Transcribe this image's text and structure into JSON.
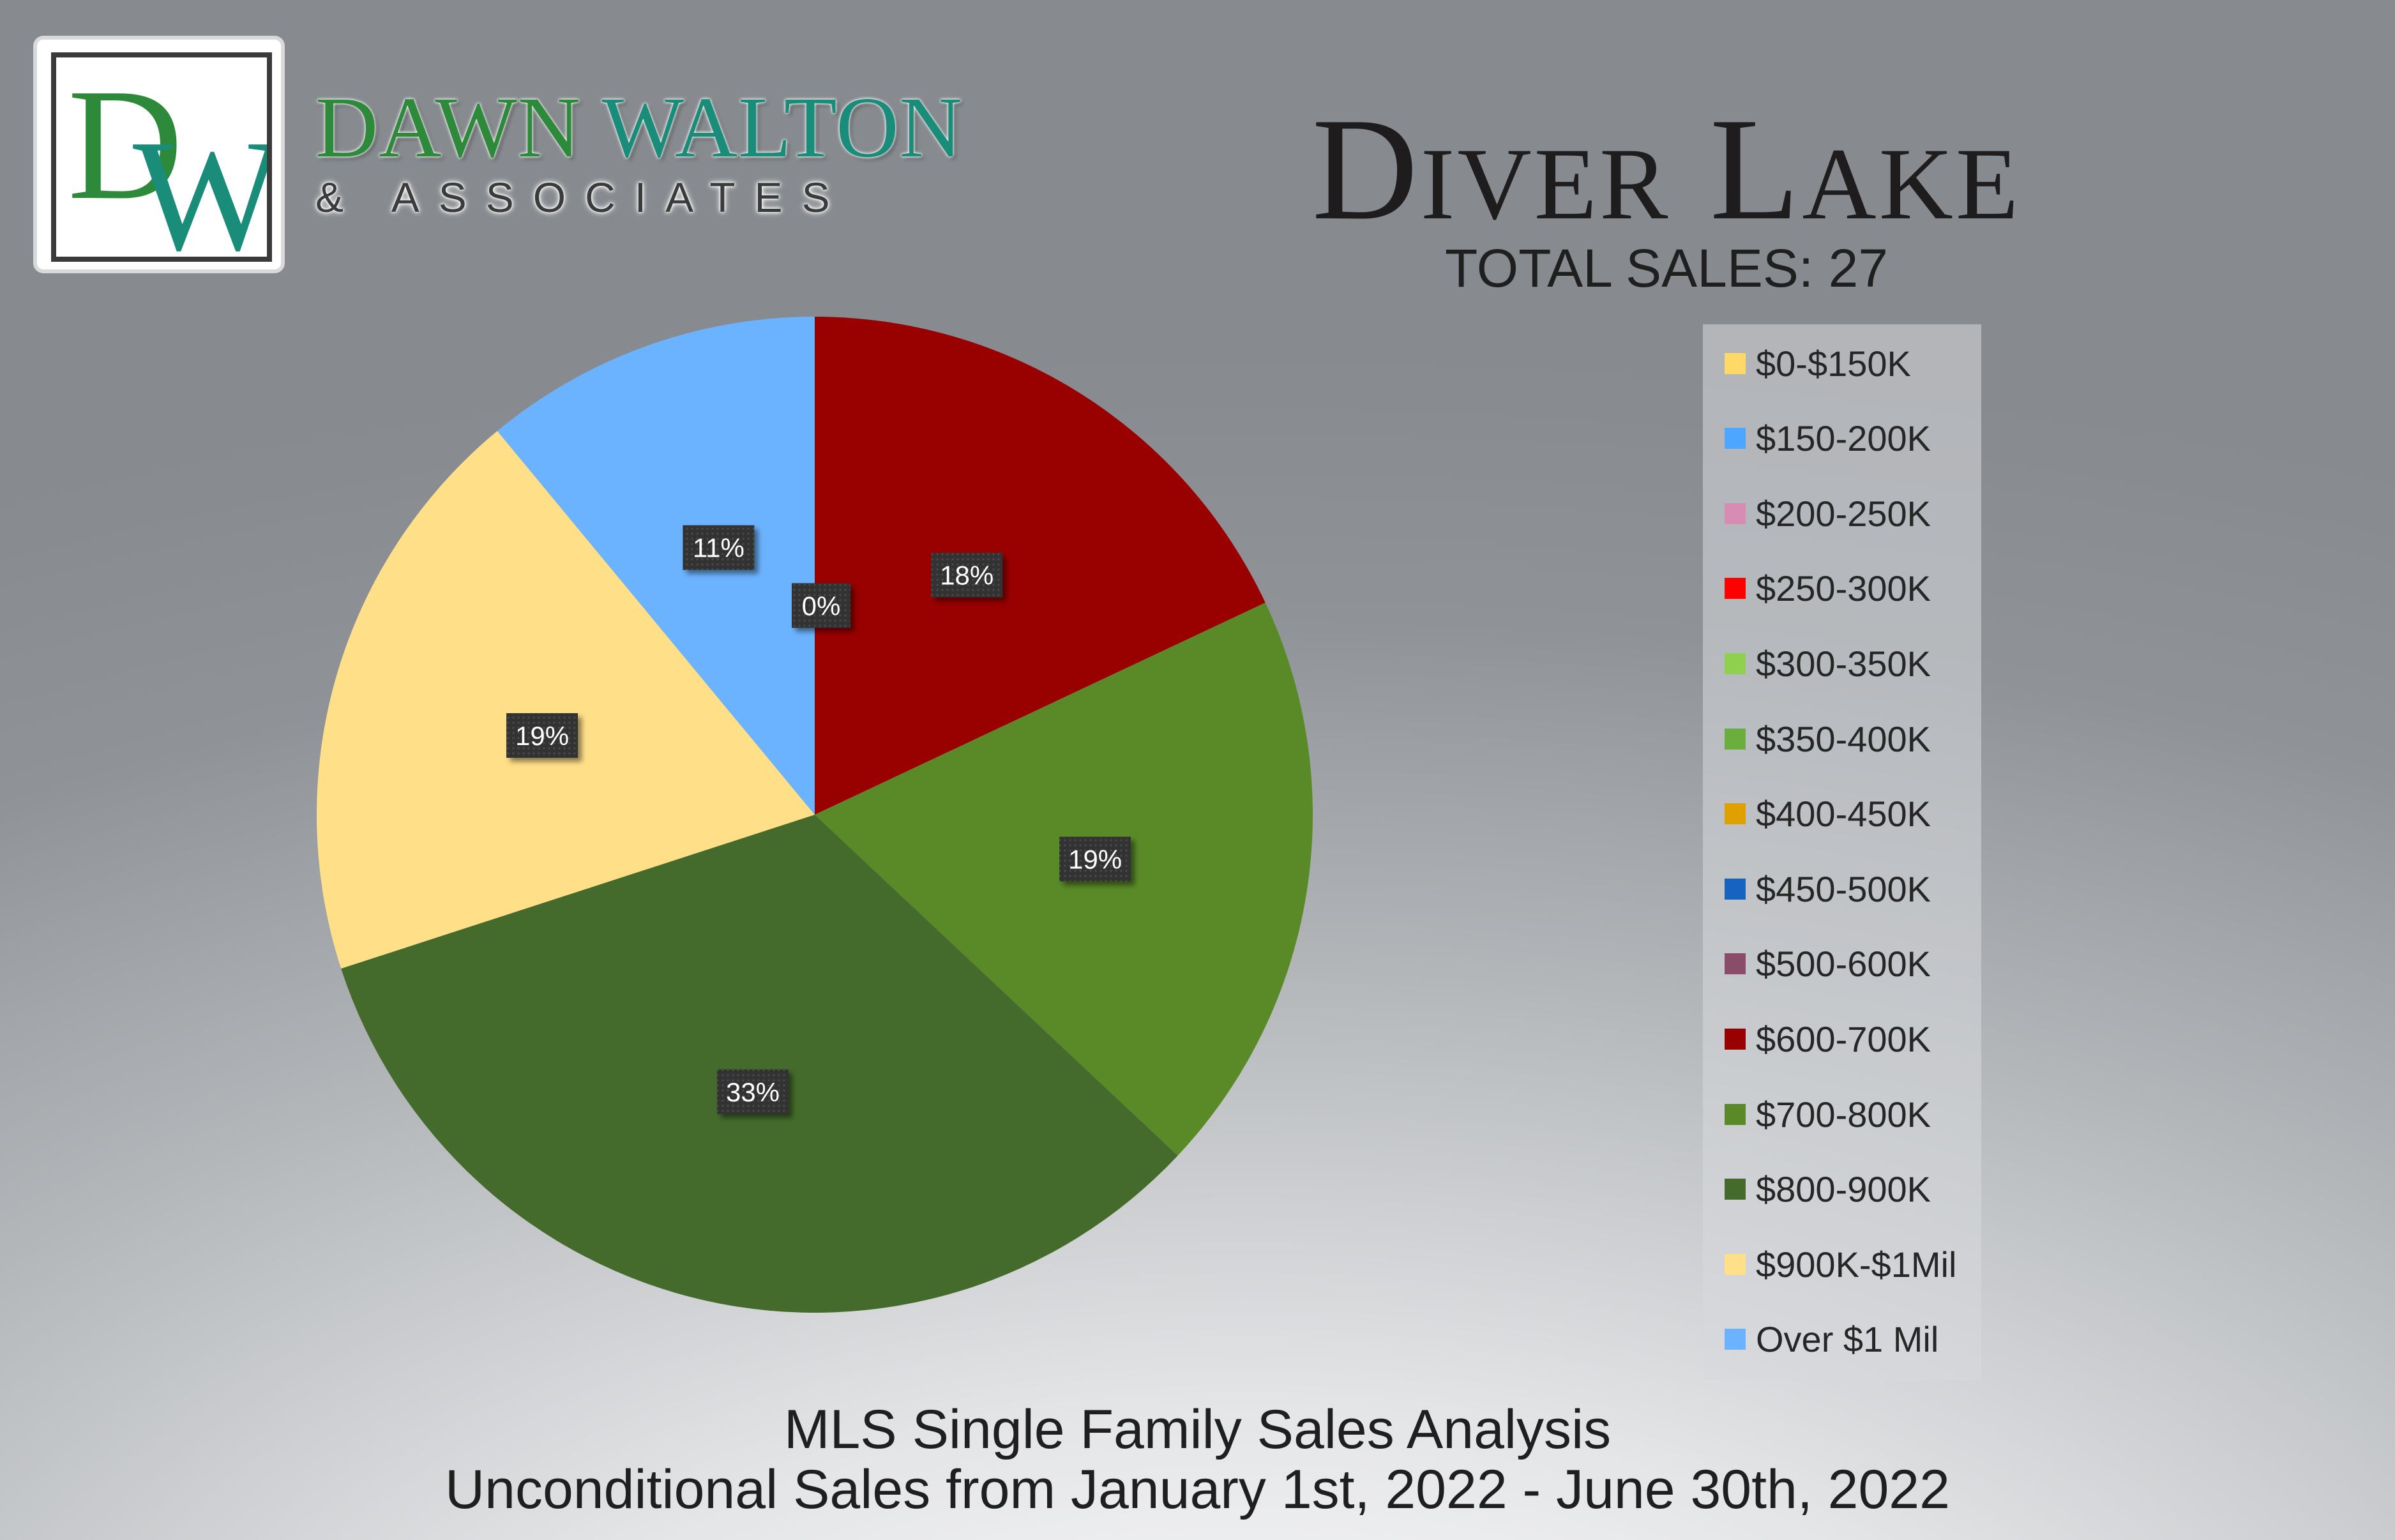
{
  "logo": {
    "monogram": "DW",
    "brand_first": "DAWN",
    "brand_last": "WALTON",
    "brand_sub": "& ASSOCIATES"
  },
  "title": "Diver Lake",
  "total_sales": "TOTAL SALES: 27",
  "footer": {
    "line1": "MLS Single Family Sales Analysis",
    "line2": "Unconditional Sales from January 1st, 2022 - June 30th, 2022"
  },
  "chart_data": {
    "type": "pie",
    "categories": [
      "$0-$150K",
      "$150-200K",
      "$200-250K",
      "$250-300K",
      "$300-350K",
      "$350-400K",
      "$400-450K",
      "$450-500K",
      "$500-600K",
      "$600-700K",
      "$700-800K",
      "$800-900K",
      "$900K-$1Mil",
      "Over $1 Mil"
    ],
    "values": [
      0,
      0,
      0,
      0,
      0,
      0,
      0,
      0,
      0,
      18,
      19,
      33,
      19,
      11
    ],
    "colors": [
      "#ffd966",
      "#4da6ff",
      "#d98cb3",
      "#ff0000",
      "#8fd14f",
      "#6aaf3d",
      "#e0a000",
      "#1565c0",
      "#8b4c6a",
      "#990000",
      "#5a8a27",
      "#446b2b",
      "#ffdf88",
      "#6bb3ff"
    ],
    "data_labels": [
      {
        "category": "$600-700K",
        "text": "18%"
      },
      {
        "category": "$700-800K",
        "text": "19%"
      },
      {
        "category": "$800-900K",
        "text": "33%"
      },
      {
        "category": "$900K-$1Mil",
        "text": "19%"
      },
      {
        "category": "Over $1 Mil",
        "text": "11%"
      },
      {
        "category": "$0-$150K",
        "text": "0%"
      }
    ],
    "start_angle": "12 o'clock",
    "direction": "clockwise",
    "legend_position": "right"
  }
}
